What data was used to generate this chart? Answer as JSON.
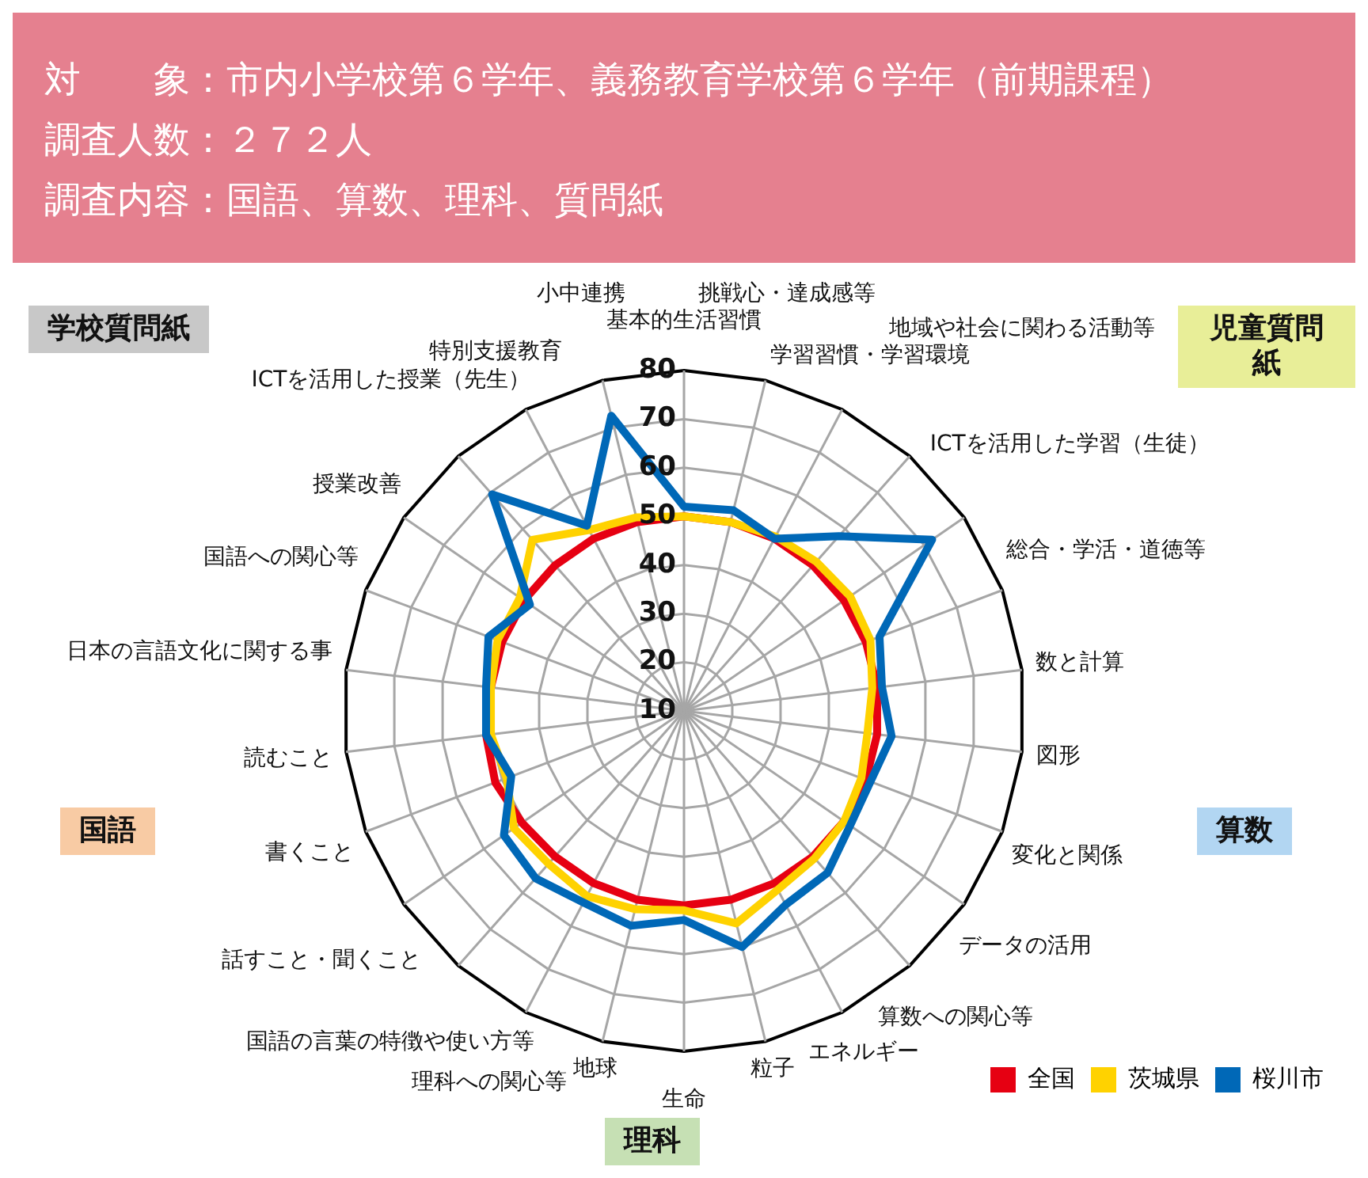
{
  "chart_data": {
    "type": "radar",
    "title": "対　　象：市内小学校第６学年、義務教育学校第６学年（前期課程）",
    "subtitle": "調査人数：２７２人",
    "categories": [
      "基本的生活習慣",
      "挑戦心・達成感等",
      "学習習慣・学習環境",
      "地域や社会に関わる活動等",
      "ICTを活用した学習（生徒）",
      "総合・学活・道徳等",
      "数と計算",
      "図形",
      "変化と関係",
      "データの活用",
      "算数への関心等",
      "エネルギー",
      "粒子",
      "生命",
      "地球",
      "理科への関心等",
      "国語の言葉の特徴や使い方等",
      "話すこと・聞くこと",
      "書くこと",
      "読むこと",
      "日本の言語文化に関する事",
      "国語への関心等",
      "授業改善",
      "ICTを活用した授業（先生）",
      "特別支援教育",
      "小中連携"
    ],
    "series": [
      {
        "name": "全国",
        "color": "#e60012",
        "values": [
          50,
          50,
          50,
          50,
          50,
          50,
          50,
          50,
          50,
          50,
          50,
          50,
          50,
          50,
          50,
          50,
          50,
          50.5,
          51.5,
          51,
          50,
          50,
          50,
          50,
          50,
          50
        ]
      },
      {
        "name": "茨城県",
        "color": "#ffd200",
        "values": [
          50,
          50,
          50.5,
          51,
          51.5,
          51,
          49,
          48,
          49,
          50,
          50.5,
          51.5,
          55,
          51,
          52,
          53,
          52,
          52.5,
          49,
          50,
          50,
          51,
          51,
          57,
          52,
          51
        ]
      },
      {
        "name": "桜川市",
        "color": "#0068b7",
        "values": [
          52,
          52.5,
          50,
          58,
          72,
          53,
          51,
          53,
          51,
          51.5,
          54.5,
          55,
          60,
          53,
          55.5,
          54.5,
          56,
          55,
          48,
          51,
          51,
          53,
          48.5,
          69.5,
          53,
          72.5
        ]
      }
    ],
    "ylim": [
      10,
      80
    ],
    "yticks": [
      10,
      20,
      30,
      40,
      50,
      60,
      70,
      80
    ],
    "grid": true,
    "legend": "bottom right",
    "marker": "none",
    "line_style": "solid",
    "annotations": [
      "調査内容：国語、算数、理科、質問紙",
      "学校質問紙",
      "児童質問紙",
      "国語",
      "算数",
      "理科"
    ]
  }
}
